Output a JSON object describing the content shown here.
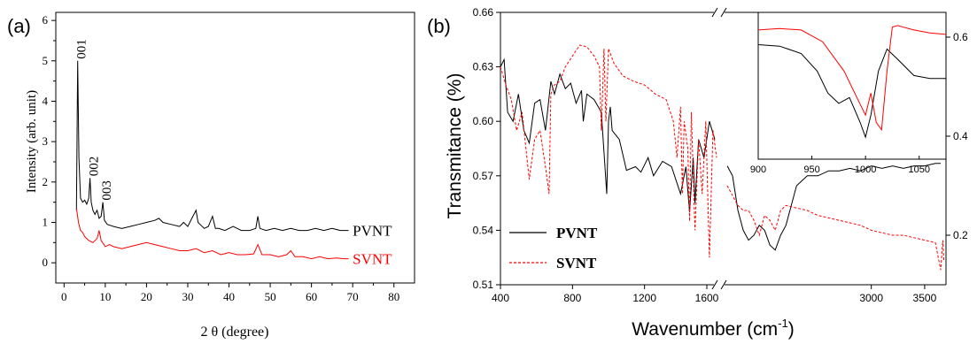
{
  "chart_data": [
    {
      "type": "line",
      "panel_label": "(a)",
      "xlabel": "2 θ (degree)",
      "ylabel": "Intensity (arb. unit)",
      "xlim": [
        -2,
        85
      ],
      "ylim": [
        -0.5,
        6.2
      ],
      "xticks": [
        "0",
        "10",
        "20",
        "30",
        "40",
        "50",
        "60",
        "70",
        "80"
      ],
      "yticks": [
        "0",
        "1",
        "2",
        "3",
        "4",
        "5",
        "6"
      ],
      "peak_labels": [
        "001",
        "002",
        "003"
      ],
      "series": [
        {
          "name": "PVNT",
          "color": "#000000",
          "x": [
            3.0,
            3.3,
            3.6,
            4.0,
            4.5,
            5.0,
            5.5,
            6.0,
            6.3,
            6.6,
            7.0,
            7.5,
            8.0,
            8.5,
            9.0,
            9.4,
            9.8,
            10.5,
            12,
            14,
            16,
            18,
            20,
            22,
            23,
            24,
            26,
            28,
            29,
            30,
            31,
            32,
            32.5,
            33,
            34,
            35,
            36,
            36.7,
            37.5,
            39,
            41,
            42,
            43,
            45,
            46.5,
            47,
            47.5,
            49,
            51,
            53,
            55,
            57,
            59,
            61,
            63,
            65,
            67,
            69
          ],
          "y": [
            1.3,
            5.0,
            2.6,
            1.6,
            1.5,
            1.55,
            1.45,
            1.6,
            2.1,
            1.5,
            1.3,
            1.2,
            1.3,
            1.1,
            1.15,
            1.5,
            1.05,
            0.95,
            0.9,
            0.85,
            0.9,
            0.95,
            1.0,
            1.05,
            1.1,
            1.0,
            0.95,
            0.9,
            1.0,
            0.9,
            1.1,
            1.3,
            1.0,
            0.95,
            0.85,
            0.9,
            1.15,
            0.85,
            0.85,
            0.8,
            0.9,
            0.85,
            0.8,
            0.8,
            0.85,
            1.15,
            0.85,
            0.8,
            0.85,
            0.8,
            0.85,
            0.8,
            0.8,
            0.85,
            0.8,
            0.85,
            0.8,
            0.8
          ]
        },
        {
          "name": "SVNT",
          "color": "#ff0000",
          "x": [
            3.0,
            3.5,
            4.0,
            4.5,
            5.0,
            6.0,
            7.0,
            8.0,
            8.5,
            9.0,
            10,
            11,
            12,
            14,
            16,
            18,
            20,
            22,
            24,
            26,
            28,
            30,
            32,
            34,
            36,
            38,
            40,
            42,
            44,
            46,
            47,
            48,
            50,
            52,
            54,
            55,
            56,
            58,
            60,
            62,
            64,
            66,
            68,
            69
          ],
          "y": [
            1.35,
            1.0,
            0.8,
            0.75,
            0.65,
            0.55,
            0.5,
            0.6,
            0.8,
            0.55,
            0.4,
            0.45,
            0.4,
            0.35,
            0.4,
            0.45,
            0.5,
            0.45,
            0.4,
            0.35,
            0.3,
            0.3,
            0.35,
            0.25,
            0.3,
            0.2,
            0.25,
            0.2,
            0.2,
            0.22,
            0.45,
            0.2,
            0.2,
            0.15,
            0.2,
            0.3,
            0.15,
            0.15,
            0.1,
            0.15,
            0.1,
            0.12,
            0.1,
            0.1
          ]
        }
      ]
    },
    {
      "type": "line",
      "panel_label": "(b)",
      "xlabel": "Wavenumber (cm",
      "xlabel_sup": "-1",
      "xlabel_end": ")",
      "ylabel": "Transmitance (%)",
      "xlim_left": [
        400,
        1600
      ],
      "xlim_right": [
        1600,
        3700
      ],
      "xticks_left": [
        "400",
        "800",
        "1200",
        "1600"
      ],
      "xticks_right": [
        "3000",
        "3500"
      ],
      "ylim_left": [
        0.51,
        0.66
      ],
      "yticks_left": [
        "0.51",
        "0.54",
        "0.57",
        "0.60",
        "0.63",
        "0.66"
      ],
      "ylim_right": [
        0.1,
        0.65
      ],
      "yticks_right": [
        "0.2",
        "0.4",
        "0.6"
      ],
      "axis_break": true,
      "series": [
        {
          "name": "PVNT",
          "color": "#000000",
          "style": "solid",
          "left": {
            "x": [
              400,
              420,
              440,
              470,
              500,
              530,
              560,
              590,
              620,
              650,
              680,
              700,
              730,
              760,
              790,
              820,
              850,
              860,
              880,
              920,
              960,
              990,
              1000,
              1010,
              1020,
              1060,
              1100,
              1150,
              1180,
              1220,
              1250,
              1300,
              1350,
              1400,
              1430,
              1450,
              1470,
              1480,
              1500,
              1530,
              1560,
              1590
            ],
            "y": [
              0.63,
              0.634,
              0.605,
              0.6,
              0.615,
              0.595,
              0.588,
              0.61,
              0.612,
              0.595,
              0.622,
              0.615,
              0.626,
              0.618,
              0.621,
              0.61,
              0.617,
              0.6,
              0.615,
              0.612,
              0.605,
              0.56,
              0.6,
              0.608,
              0.595,
              0.59,
              0.573,
              0.575,
              0.572,
              0.58,
              0.57,
              0.578,
              0.575,
              0.56,
              0.575,
              0.55,
              0.58,
              0.555,
              0.59,
              0.58,
              0.6,
              0.59
            ]
          },
          "right": {
            "x": [
              1650,
              1700,
              1750,
              1800,
              1850,
              1900,
              1950,
              2000,
              2050,
              2100,
              2150,
              2200,
              2250,
              2300,
              2350,
              2400,
              2500,
              2600,
              2700,
              2800,
              2900,
              3000,
              3100,
              3200,
              3300,
              3400,
              3500,
              3600,
              3650
            ],
            "y": [
              0.34,
              0.32,
              0.25,
              0.21,
              0.19,
              0.2,
              0.22,
              0.21,
              0.18,
              0.17,
              0.2,
              0.22,
              0.26,
              0.3,
              0.31,
              0.32,
              0.32,
              0.33,
              0.33,
              0.335,
              0.33,
              0.34,
              0.335,
              0.34,
              0.335,
              0.34,
              0.34,
              0.345,
              0.345
            ]
          }
        },
        {
          "name": "SVNT",
          "color": "#ff0000",
          "style": "dashed",
          "left": {
            "x": [
              400,
              430,
              460,
              490,
              520,
              560,
              590,
              620,
              650,
              670,
              680,
              700,
              730,
              760,
              800,
              840,
              880,
              920,
              950,
              960,
              975,
              985,
              1000,
              1030,
              1080,
              1140,
              1200,
              1260,
              1320,
              1360,
              1380,
              1400,
              1410,
              1420,
              1440,
              1450,
              1460,
              1480,
              1500,
              1520,
              1540,
              1560,
              1580,
              1600
            ],
            "y": [
              0.63,
              0.62,
              0.612,
              0.595,
              0.605,
              0.568,
              0.59,
              0.595,
              0.575,
              0.56,
              0.615,
              0.62,
              0.622,
              0.63,
              0.636,
              0.642,
              0.641,
              0.636,
              0.63,
              0.595,
              0.64,
              0.6,
              0.64,
              0.632,
              0.625,
              0.622,
              0.62,
              0.615,
              0.612,
              0.6,
              0.58,
              0.608,
              0.56,
              0.6,
              0.585,
              0.545,
              0.605,
              0.54,
              0.59,
              0.56,
              0.6,
              0.525,
              0.595,
              0.58
            ]
          },
          "right": {
            "x": [
              1650,
              1700,
              1750,
              1800,
              1850,
              1900,
              1950,
              2000,
              2050,
              2100,
              2150,
              2200,
              2300,
              2400,
              2500,
              2600,
              2700,
              2800,
              2900,
              3000,
              3100,
              3200,
              3300,
              3400,
              3500,
              3600,
              3650,
              3670,
              3680
            ],
            "y": [
              0.3,
              0.28,
              0.26,
              0.25,
              0.25,
              0.23,
              0.2,
              0.24,
              0.23,
              0.21,
              0.25,
              0.26,
              0.255,
              0.25,
              0.24,
              0.235,
              0.23,
              0.225,
              0.22,
              0.21,
              0.205,
              0.2,
              0.2,
              0.195,
              0.19,
              0.185,
              0.13,
              0.19,
              0.15
            ]
          }
        }
      ],
      "inset": {
        "xlim": [
          900,
          1075
        ],
        "xticks": [
          "900",
          "950",
          "1000",
          "1050"
        ],
        "ylim": [
          0.0,
          1.0
        ],
        "series": [
          {
            "name": "PVNT",
            "color": "#000000",
            "x": [
              900,
              920,
              940,
              955,
              965,
              975,
              985,
              995,
              1000,
              1005,
              1012,
              1020,
              1030,
              1045,
              1060,
              1075
            ],
            "y": [
              0.78,
              0.77,
              0.72,
              0.6,
              0.45,
              0.38,
              0.42,
              0.25,
              0.15,
              0.3,
              0.6,
              0.75,
              0.68,
              0.57,
              0.55,
              0.55
            ]
          },
          {
            "name": "SVNT",
            "color": "#ff0000",
            "x": [
              900,
              920,
              940,
              960,
              980,
              990,
              1000,
              1005,
              1010,
              1015,
              1020,
              1025,
              1030,
              1045,
              1060,
              1075
            ],
            "y": [
              0.88,
              0.89,
              0.88,
              0.8,
              0.6,
              0.45,
              0.3,
              0.45,
              0.25,
              0.2,
              0.6,
              0.9,
              0.91,
              0.88,
              0.86,
              0.85
            ]
          }
        ]
      },
      "legend": {
        "placement": "bottom-left",
        "entries": [
          "PVNT",
          "SVNT"
        ]
      }
    }
  ]
}
